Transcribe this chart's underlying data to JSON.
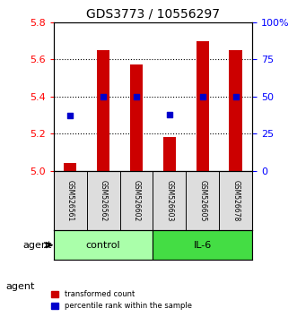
{
  "title": "GDS3773 / 10556297",
  "samples": [
    "GSM526561",
    "GSM526562",
    "GSM526602",
    "GSM526603",
    "GSM526605",
    "GSM526678"
  ],
  "bar_values": [
    5.04,
    5.65,
    5.57,
    5.18,
    5.7,
    5.65
  ],
  "bar_base": 5.0,
  "bar_color": "#cc0000",
  "dot_values": [
    5.33,
    5.42,
    5.4,
    5.35,
    5.42,
    5.42
  ],
  "dot_color": "#0000cc",
  "dot_right_values": [
    37,
    50,
    50,
    38,
    50,
    50
  ],
  "ylim": [
    5.0,
    5.8
  ],
  "yticks_left": [
    5.0,
    5.2,
    5.4,
    5.6,
    5.8
  ],
  "yticks_right": [
    0,
    25,
    50,
    75,
    100
  ],
  "ytick_labels_right": [
    "0",
    "25",
    "50",
    "75",
    "100%"
  ],
  "groups": [
    {
      "label": "control",
      "indices": [
        0,
        1,
        2
      ],
      "color": "#aaffaa"
    },
    {
      "label": "IL-6",
      "indices": [
        3,
        4,
        5
      ],
      "color": "#44dd44"
    }
  ],
  "agent_label": "agent",
  "legend_bar_label": "transformed count",
  "legend_dot_label": "percentile rank within the sample",
  "grid_color": "#000000",
  "background_plot": "#ffffff",
  "background_label": "#dddddd"
}
